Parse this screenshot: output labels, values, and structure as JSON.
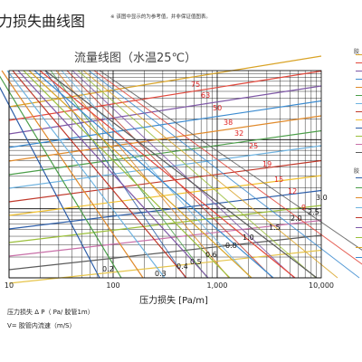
{
  "header": {
    "title": "力损失曲线图",
    "note": "※ 该图中显示的为参考值，并非保证值图表。"
  },
  "legend": {
    "title_a": "胶",
    "title_b": "胶",
    "colors": [
      "#d9a326",
      "#e2473b",
      "#7e57a6",
      "#3b8bd0",
      "#e08a2b",
      "#4c9e4a",
      "#6fb3e0",
      "#c0392b",
      "#f2c12e",
      "#2e5ea8",
      "#9bbf3b",
      "#c86fa8",
      "#5c5c5c"
    ],
    "colors_b": [
      "#2e5ea8",
      "#4c9e4a",
      "#e08a2b",
      "#6fb3e0",
      "#c0392b",
      "#7e57a6",
      "#9bbf3b",
      "#d9a326",
      "#3b8bd0"
    ]
  },
  "footer": {
    "line1": "压力损失 Δ P（ Pa/ 胶管1m）",
    "line2": "V= 胶管内流速（m/S）"
  },
  "chart_data": {
    "type": "line",
    "title": "流量线图（水温25℃）",
    "xlabel": "压力损失 [Pa/m]",
    "x_scale": "log",
    "xlim": [
      10,
      10000
    ],
    "x_ticks": [
      10,
      100,
      1000,
      10000
    ],
    "x_tick_labels": [
      "10",
      "100",
      "1,000",
      "10,000"
    ],
    "grid": true,
    "diameter_labels": [
      "75",
      "63",
      "50",
      "38",
      "32",
      "25",
      "19",
      "15",
      "12",
      "9"
    ],
    "velocity_labels": [
      "0.2",
      "0.3",
      "0.4",
      "0.5",
      "0.6",
      "0.8",
      "1.0",
      "1.5",
      "2.0",
      "2.5",
      "3.0"
    ],
    "diameter_line_colors": [
      "#d9a326",
      "#e2473b",
      "#7e57a6",
      "#3b8bd0",
      "#e08a2b",
      "#4c9e4a",
      "#6fb3e0",
      "#c0392b",
      "#f2c12e",
      "#2e5ea8",
      "#9bbf3b",
      "#c86fa8",
      "#5c5c5c",
      "#e6c44a"
    ],
    "velocity_line_colors": [
      "#2e5ea8",
      "#4c9e4a",
      "#e08a2b",
      "#6fb3e0",
      "#c0392b",
      "#7e57a6",
      "#9bbf3b",
      "#d9a326",
      "#3b8bd0",
      "#e2473b",
      "#5c5c5c"
    ]
  }
}
